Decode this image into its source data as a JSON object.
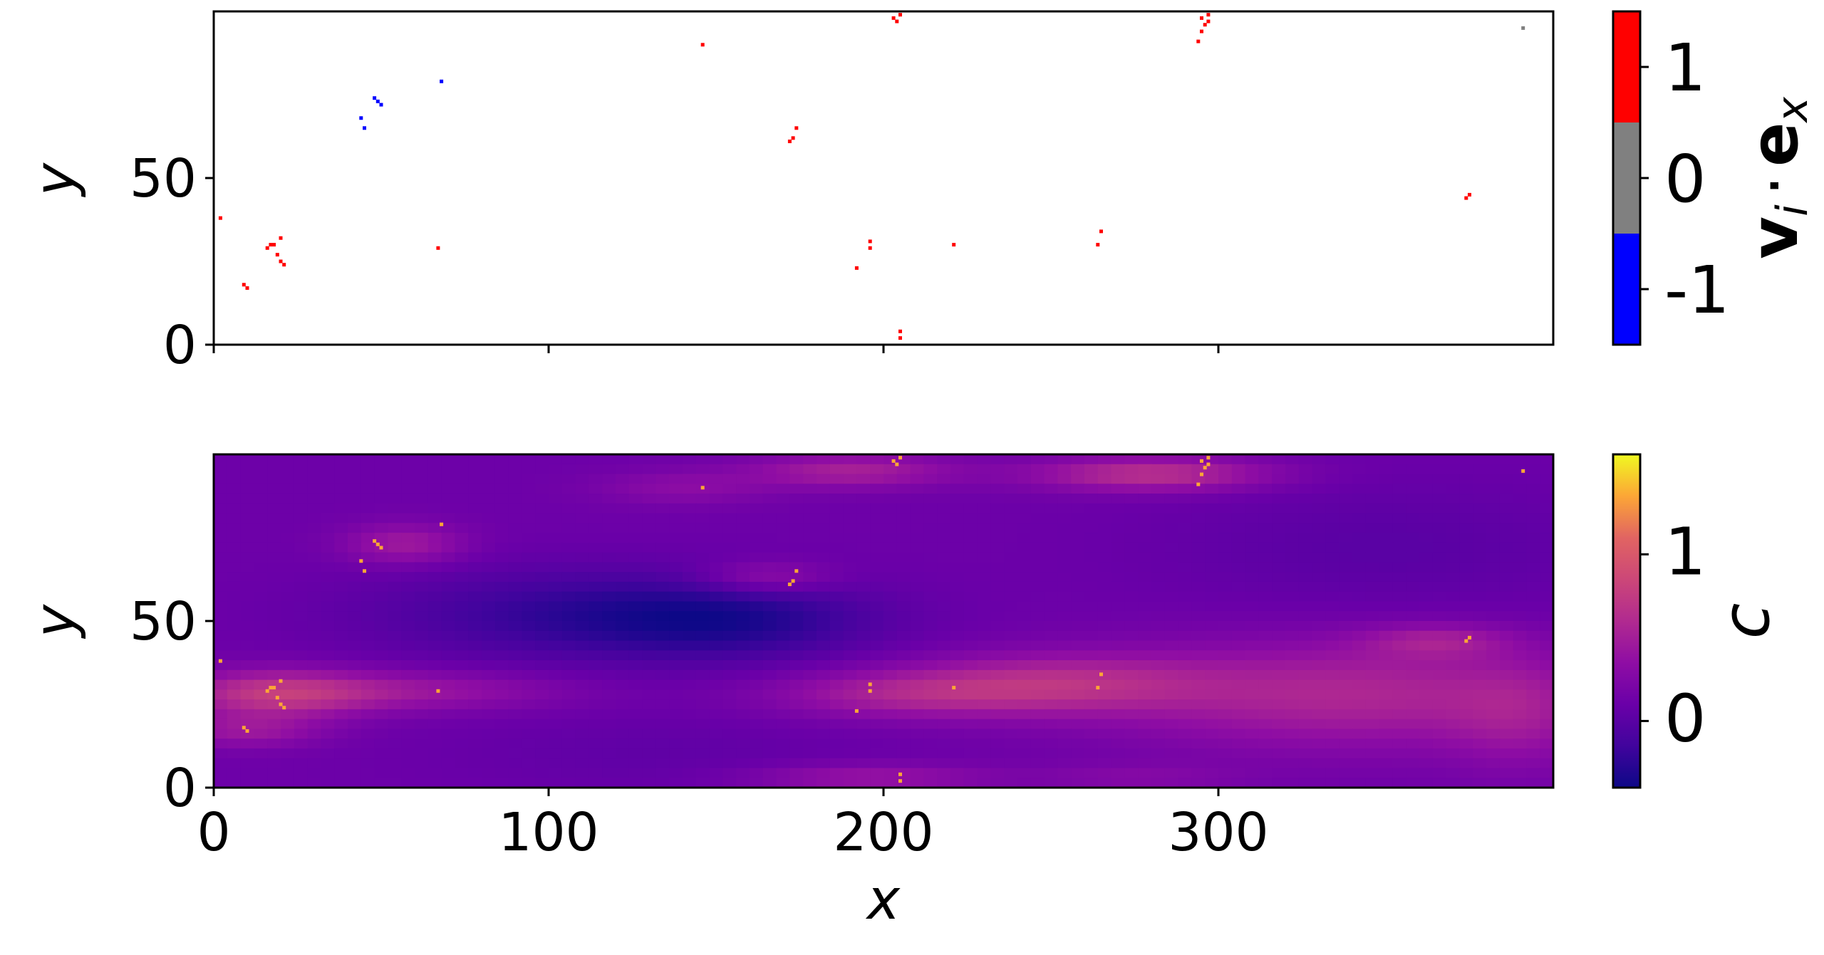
{
  "chart_data": [
    {
      "type": "scatter",
      "panel": "top",
      "xlabel": "",
      "ylabel": "y",
      "xlim": [
        0,
        400
      ],
      "ylim": [
        0,
        100
      ],
      "xticks": [
        0,
        100,
        200,
        300
      ],
      "xticklabels_visible": false,
      "yticks": [
        0,
        50
      ],
      "yticklabels": [
        "0",
        "50"
      ],
      "grid": false,
      "colorbar": {
        "label": "v_i · e_x",
        "label_parts": {
          "v": "v",
          "i": "i",
          "dot": "·",
          "e": "e",
          "x": "x"
        },
        "type": "discrete",
        "ticks": [
          1,
          0,
          -1
        ],
        "ticklabels": [
          "1",
          "0",
          "-1"
        ],
        "colors": {
          "1": "#ff0000",
          "0": "#808080",
          "-1": "#0000ff"
        }
      },
      "points": [
        {
          "x": 2,
          "y": 38,
          "v": 1
        },
        {
          "x": 9,
          "y": 18,
          "v": 1
        },
        {
          "x": 10,
          "y": 17,
          "v": 1
        },
        {
          "x": 16,
          "y": 29,
          "v": 1
        },
        {
          "x": 17,
          "y": 30,
          "v": 1
        },
        {
          "x": 18,
          "y": 30,
          "v": 1
        },
        {
          "x": 19,
          "y": 27,
          "v": 1
        },
        {
          "x": 20,
          "y": 25,
          "v": 1
        },
        {
          "x": 20,
          "y": 32,
          "v": 1
        },
        {
          "x": 21,
          "y": 24,
          "v": 1
        },
        {
          "x": 44,
          "y": 68,
          "v": -1
        },
        {
          "x": 45,
          "y": 65,
          "v": -1
        },
        {
          "x": 48,
          "y": 74,
          "v": -1
        },
        {
          "x": 49,
          "y": 73,
          "v": -1
        },
        {
          "x": 50,
          "y": 72,
          "v": -1
        },
        {
          "x": 67,
          "y": 29,
          "v": 1
        },
        {
          "x": 68,
          "y": 79,
          "v": -1
        },
        {
          "x": 146,
          "y": 90,
          "v": 1
        },
        {
          "x": 172,
          "y": 61,
          "v": 1
        },
        {
          "x": 173,
          "y": 62,
          "v": 1
        },
        {
          "x": 174,
          "y": 65,
          "v": 1
        },
        {
          "x": 192,
          "y": 23,
          "v": 1
        },
        {
          "x": 196,
          "y": 29,
          "v": 1
        },
        {
          "x": 196,
          "y": 31,
          "v": 1
        },
        {
          "x": 203,
          "y": 98,
          "v": 1
        },
        {
          "x": 204,
          "y": 97,
          "v": 1
        },
        {
          "x": 205,
          "y": 99,
          "v": 1
        },
        {
          "x": 205,
          "y": 2,
          "v": 1
        },
        {
          "x": 205,
          "y": 4,
          "v": 1
        },
        {
          "x": 221,
          "y": 30,
          "v": 1
        },
        {
          "x": 264,
          "y": 30,
          "v": 1
        },
        {
          "x": 265,
          "y": 34,
          "v": 1
        },
        {
          "x": 294,
          "y": 91,
          "v": 1
        },
        {
          "x": 295,
          "y": 94,
          "v": 1
        },
        {
          "x": 295,
          "y": 98,
          "v": 1
        },
        {
          "x": 296,
          "y": 96,
          "v": 1
        },
        {
          "x": 297,
          "y": 99,
          "v": 1
        },
        {
          "x": 297,
          "y": 97,
          "v": 1
        },
        {
          "x": 374,
          "y": 44,
          "v": 1
        },
        {
          "x": 375,
          "y": 45,
          "v": 1
        },
        {
          "x": 391,
          "y": 95,
          "v": 0
        }
      ]
    },
    {
      "type": "heatmap",
      "panel": "bottom",
      "xlabel": "x",
      "ylabel": "y",
      "xlim": [
        0,
        400
      ],
      "ylim": [
        0,
        100
      ],
      "xticks": [
        0,
        100,
        200,
        300
      ],
      "xticklabels": [
        "0",
        "100",
        "200",
        "300"
      ],
      "yticks": [
        0,
        50
      ],
      "yticklabels": [
        "0",
        "50"
      ],
      "colormap": "plasma",
      "clim": [
        -0.4,
        1.6
      ],
      "base_value": 0.12,
      "colorbar": {
        "label": "c",
        "ticks": [
          1,
          0
        ],
        "ticklabels": [
          "1",
          "0"
        ]
      },
      "field_features": [
        {
          "x": 18,
          "y": 28,
          "sx": 28,
          "sy": 7,
          "amp": 0.55
        },
        {
          "x": 10,
          "y": 17,
          "sx": 22,
          "sy": 5,
          "amp": 0.3
        },
        {
          "x": 60,
          "y": 29,
          "sx": 45,
          "sy": 6,
          "amp": 0.3
        },
        {
          "x": 205,
          "y": 28,
          "sx": 40,
          "sy": 7,
          "amp": 0.35
        },
        {
          "x": 250,
          "y": 31,
          "sx": 45,
          "sy": 9,
          "amp": 0.45
        },
        {
          "x": 340,
          "y": 28,
          "sx": 70,
          "sy": 16,
          "amp": 0.45
        },
        {
          "x": 390,
          "y": 20,
          "sx": 20,
          "sy": 16,
          "amp": 0.2
        },
        {
          "x": 280,
          "y": 94,
          "sx": 35,
          "sy": 5,
          "amp": 0.55
        },
        {
          "x": 190,
          "y": 95,
          "sx": 30,
          "sy": 5,
          "amp": 0.4
        },
        {
          "x": 140,
          "y": 90,
          "sx": 25,
          "sy": 5,
          "amp": 0.2
        },
        {
          "x": 165,
          "y": 63,
          "sx": 20,
          "sy": 5,
          "amp": 0.3
        },
        {
          "x": 57,
          "y": 73,
          "sx": 18,
          "sy": 6,
          "amp": 0.35
        },
        {
          "x": 365,
          "y": 44,
          "sx": 22,
          "sy": 5,
          "amp": 0.3
        },
        {
          "x": 195,
          "y": 3,
          "sx": 35,
          "sy": 4,
          "amp": 0.3
        },
        {
          "x": 275,
          "y": 3,
          "sx": 30,
          "sy": 4,
          "amp": 0.15
        },
        {
          "x": 105,
          "y": 52,
          "sx": 60,
          "sy": 14,
          "amp": -0.3
        },
        {
          "x": 155,
          "y": 50,
          "sx": 45,
          "sy": 12,
          "amp": -0.35
        },
        {
          "x": 350,
          "y": 72,
          "sx": 70,
          "sy": 20,
          "amp": -0.12
        },
        {
          "x": 130,
          "y": 10,
          "sx": 60,
          "sy": 12,
          "amp": -0.08
        }
      ]
    }
  ]
}
